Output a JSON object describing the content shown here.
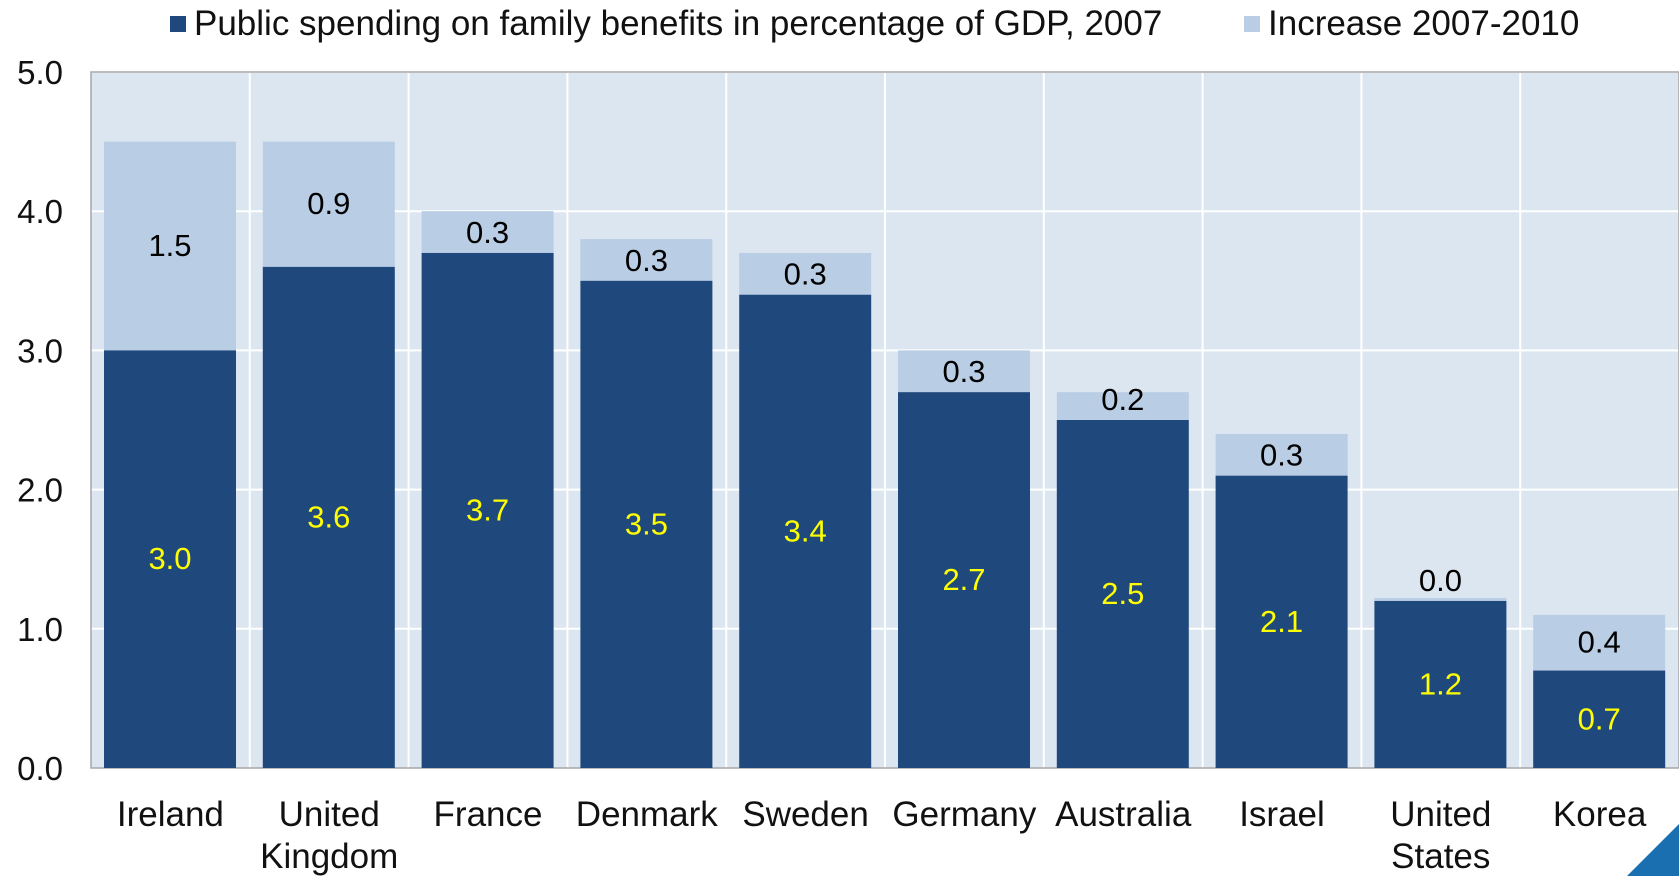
{
  "legend": {
    "base_label": "Public spending on family benefits in percentage of GDP, 2007",
    "increase_label": "Increase 2007-2010"
  },
  "colors": {
    "plot_background": "#dce6f1",
    "base": "#1f497d",
    "increase": "#b9cde5",
    "base_label_text": "#ffff00",
    "increase_label_text": "#000000",
    "grid": "#ffffff",
    "corner_accent": "#1a6fb0"
  },
  "chart_data": {
    "type": "bar",
    "stacked": true,
    "categories": [
      [
        "Ireland"
      ],
      [
        "United",
        "Kingdom"
      ],
      [
        "France"
      ],
      [
        "Denmark"
      ],
      [
        "Sweden"
      ],
      [
        "Germany"
      ],
      [
        "Australia"
      ],
      [
        "Israel"
      ],
      [
        "United",
        "States"
      ],
      [
        "Korea"
      ]
    ],
    "series": [
      {
        "name": "Public spending on family benefits in percentage of GDP, 2007",
        "values": [
          3.0,
          3.6,
          3.7,
          3.5,
          3.4,
          2.7,
          2.5,
          2.1,
          1.2,
          0.7
        ],
        "labels": [
          "3.0",
          "3.6",
          "3.7",
          "3.5",
          "3.4",
          "2.7",
          "2.5",
          "2.1",
          "1.2",
          "0.7"
        ]
      },
      {
        "name": "Increase 2007-2010",
        "values": [
          1.5,
          0.9,
          0.3,
          0.3,
          0.3,
          0.3,
          0.2,
          0.3,
          0.0,
          0.4
        ],
        "labels": [
          "1.5",
          "0.9",
          "0.3",
          "0.3",
          "0.3",
          "0.3",
          "0.2",
          "0.3",
          "0.0",
          "0.4"
        ]
      }
    ],
    "y_ticks": [
      "0.0",
      "1.0",
      "2.0",
      "3.0",
      "4.0",
      "5.0"
    ],
    "ylim": [
      0,
      5
    ],
    "grid": true,
    "legend_position": "top"
  }
}
